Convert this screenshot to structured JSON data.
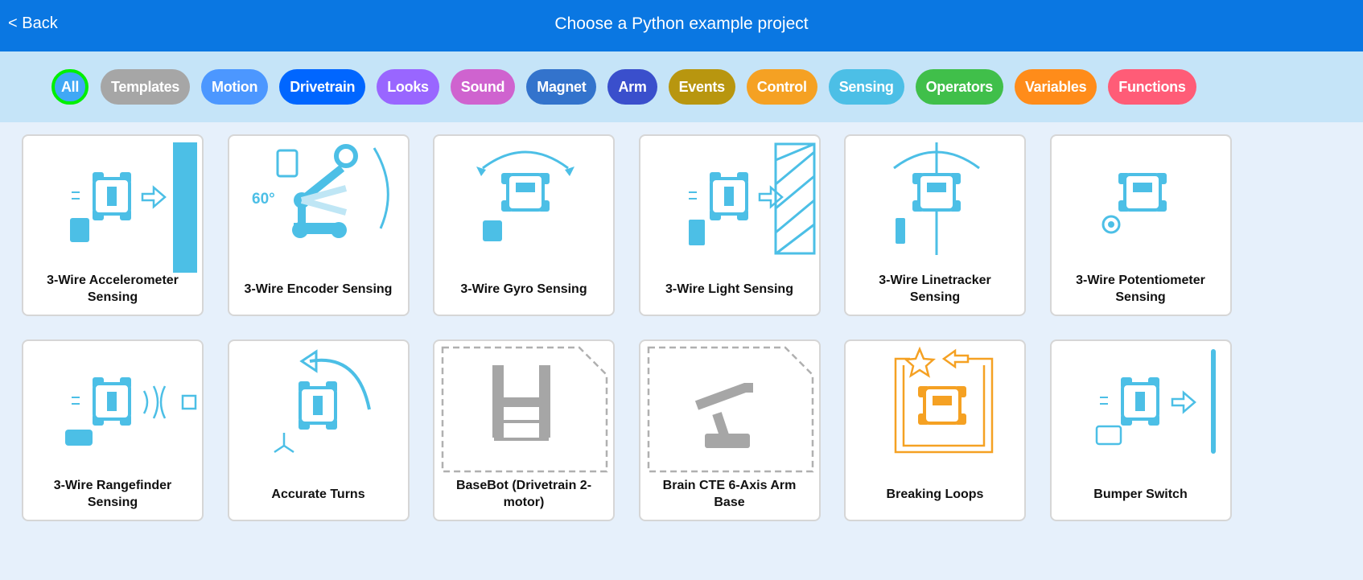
{
  "header": {
    "back": "< Back",
    "title": "Choose a Python example project"
  },
  "filters": [
    {
      "label": "All",
      "color": "#40a8f5",
      "selected": true
    },
    {
      "label": "Templates",
      "color": "#a6a6a6"
    },
    {
      "label": "Motion",
      "color": "#4c97ff"
    },
    {
      "label": "Drivetrain",
      "color": "#0066ff"
    },
    {
      "label": "Looks",
      "color": "#9966ff"
    },
    {
      "label": "Sound",
      "color": "#cf63cf"
    },
    {
      "label": "Magnet",
      "color": "#3373cc"
    },
    {
      "label": "Arm",
      "color": "#3a4fcc"
    },
    {
      "label": "Events",
      "color": "#b8960f"
    },
    {
      "label": "Control",
      "color": "#f5a123"
    },
    {
      "label": "Sensing",
      "color": "#4cbfe6"
    },
    {
      "label": "Operators",
      "color": "#40bf4a"
    },
    {
      "label": "Variables",
      "color": "#ff8c1a"
    },
    {
      "label": "Functions",
      "color": "#ff5c77"
    }
  ],
  "projects": [
    {
      "title": "3-Wire Accelerometer Sensing",
      "icon": "accelerometer-icon",
      "color": "#4cbfe6"
    },
    {
      "title": "3-Wire Encoder Sensing",
      "icon": "encoder-arm-icon",
      "color": "#4cbfe6",
      "badge": "60°"
    },
    {
      "title": "3-Wire Gyro Sensing",
      "icon": "gyro-icon",
      "color": "#4cbfe6"
    },
    {
      "title": "3-Wire Light Sensing",
      "icon": "light-sensor-icon",
      "color": "#4cbfe6"
    },
    {
      "title": "3-Wire Linetracker Sensing",
      "icon": "linetracker-icon",
      "color": "#4cbfe6"
    },
    {
      "title": "3-Wire Potentiometer Sensing",
      "icon": "potentiometer-icon",
      "color": "#4cbfe6"
    },
    {
      "title": "3-Wire Rangefinder Sensing",
      "icon": "rangefinder-icon",
      "color": "#4cbfe6"
    },
    {
      "title": "Accurate Turns",
      "icon": "turn-icon",
      "color": "#4cbfe6"
    },
    {
      "title": "BaseBot (Drivetrain 2-motor)",
      "icon": "basebot-template-icon",
      "color": "#a6a6a6"
    },
    {
      "title": "Brain CTE 6-Axis Arm Base",
      "icon": "arm-template-icon",
      "color": "#a6a6a6"
    },
    {
      "title": "Breaking Loops",
      "icon": "loop-icon",
      "color": "#f5a123"
    },
    {
      "title": "Bumper Switch",
      "icon": "bumper-icon",
      "color": "#4cbfe6"
    }
  ]
}
